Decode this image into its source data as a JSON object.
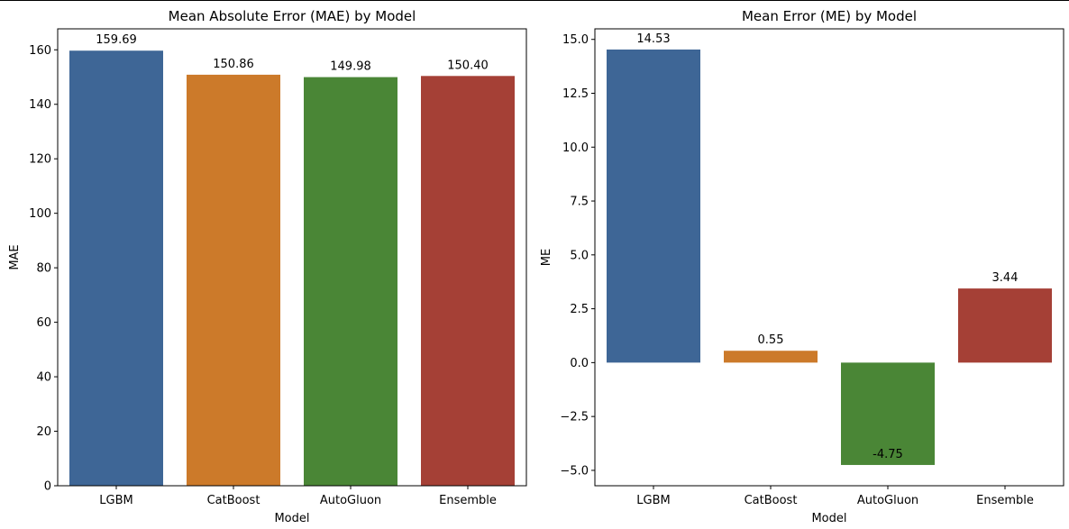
{
  "chart_data": [
    {
      "type": "bar",
      "title": "Mean Absolute Error (MAE) by Model",
      "xlabel": "Model",
      "ylabel": "MAE",
      "categories": [
        "LGBM",
        "CatBoost",
        "AutoGluon",
        "Ensemble"
      ],
      "values": [
        159.69,
        150.86,
        149.98,
        150.4
      ],
      "value_labels": [
        "159.69",
        "150.86",
        "149.98",
        "150.40"
      ],
      "ylim": [
        0,
        167.7
      ],
      "yticks": [
        0,
        20,
        40,
        60,
        80,
        100,
        120,
        140,
        160
      ],
      "ytick_labels": [
        "0",
        "20",
        "40",
        "60",
        "80",
        "100",
        "120",
        "140",
        "160"
      ],
      "colors": [
        "#3e6696",
        "#cc7a2a",
        "#4a8636",
        "#a54036"
      ],
      "grid": false,
      "legend": "none"
    },
    {
      "type": "bar",
      "title": "Mean Error (ME) by Model",
      "xlabel": "Model",
      "ylabel": "ME",
      "categories": [
        "LGBM",
        "CatBoost",
        "AutoGluon",
        "Ensemble"
      ],
      "values": [
        14.53,
        0.55,
        -4.75,
        3.44
      ],
      "value_labels": [
        "14.53",
        "0.55",
        "-4.75",
        "3.44"
      ],
      "ylim": [
        -5.714,
        15.49
      ],
      "yticks": [
        -5.0,
        -2.5,
        0.0,
        2.5,
        5.0,
        7.5,
        10.0,
        12.5,
        15.0
      ],
      "ytick_labels": [
        "−5.0",
        "−2.5",
        "0.0",
        "2.5",
        "5.0",
        "7.5",
        "10.0",
        "12.5",
        "15.0"
      ],
      "colors": [
        "#3e6696",
        "#cc7a2a",
        "#4a8636",
        "#a54036"
      ],
      "grid": false,
      "legend": "none"
    }
  ]
}
